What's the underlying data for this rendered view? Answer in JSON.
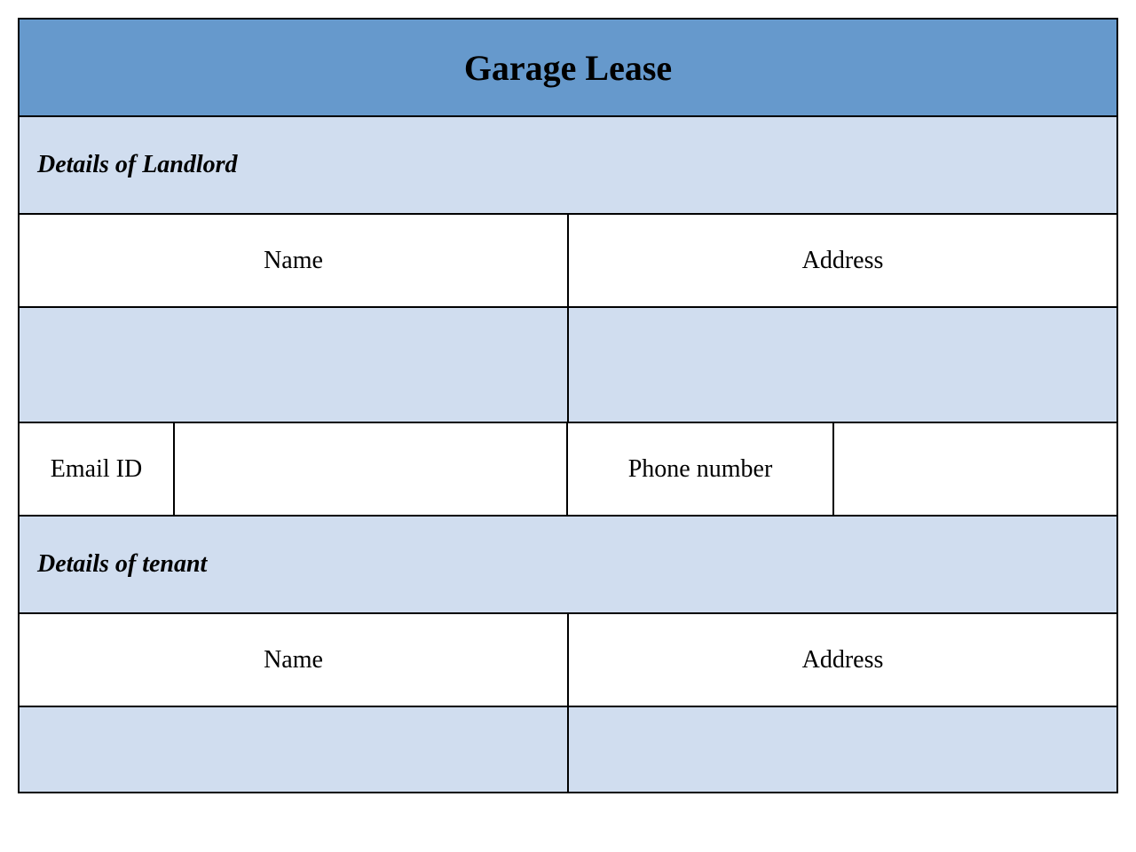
{
  "title": "Garage Lease",
  "landlord": {
    "section_label": "Details of Landlord",
    "name_label": "Name",
    "address_label": "Address",
    "email_label": "Email ID",
    "phone_label": "Phone number",
    "name_value": "",
    "address_value": "",
    "email_value": "",
    "phone_value": ""
  },
  "tenant": {
    "section_label": "Details of tenant",
    "name_label": "Name",
    "address_label": "Address",
    "name_value": "",
    "address_value": ""
  },
  "colors": {
    "title_bg": "#6699cc",
    "section_bg": "#d0ddef",
    "cell_bg": "#ffffff",
    "border": "#000000",
    "text": "#000000"
  }
}
